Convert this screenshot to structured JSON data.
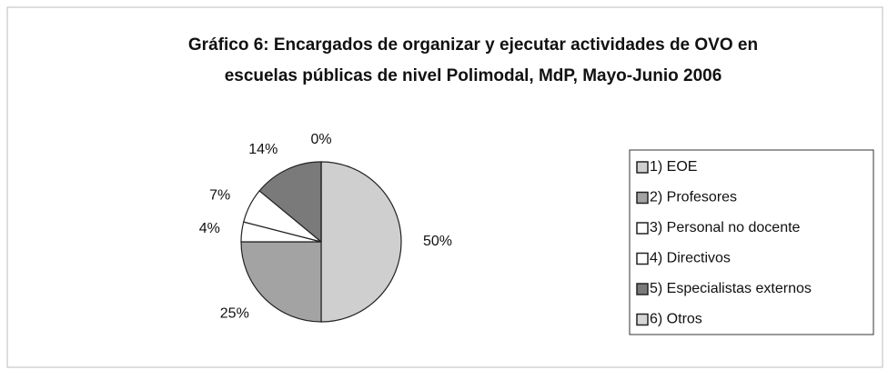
{
  "chart_data": {
    "type": "pie",
    "title": "Gráfico 6:  Encargados de organizar y ejecutar actividades de OVO en",
    "subtitle": "escuelas públicas de nivel Polimodal, MdP, Mayo-Junio 2006",
    "categories": [
      "1) EOE",
      "2) Profesores",
      "3) Personal no docente",
      "4) Directivos",
      "5) Especialistas externos",
      "6) Otros"
    ],
    "values": [
      50,
      25,
      4,
      7,
      14,
      0
    ],
    "value_labels": [
      "50%",
      "25%",
      "4%",
      "7%",
      "14%",
      "0%"
    ],
    "colors": [
      "#cfcfcf",
      "#a3a3a3",
      "#ffffff",
      "#ffffff",
      "#7a7a7a",
      "#d6d6d6"
    ],
    "legend": "right"
  }
}
